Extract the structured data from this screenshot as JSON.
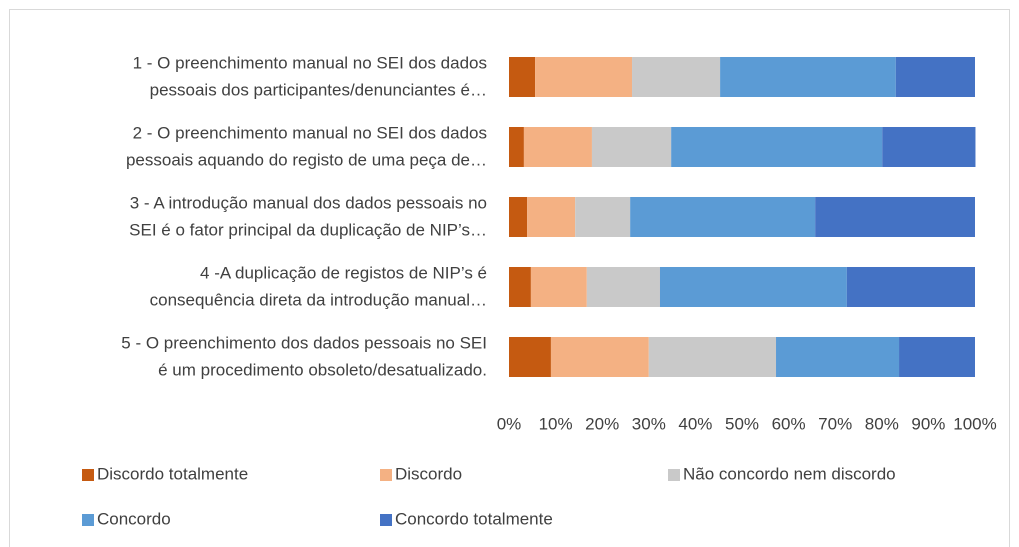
{
  "chart_data": {
    "type": "stacked-bar-horizontal",
    "categories": [
      [
        "1 - O preenchimento manual no SEI dos dados",
        "pessoais dos participantes/denunciantes é…"
      ],
      [
        "2 - O preenchimento manual no SEI dos dados",
        "pessoais aquando do registo de uma peça de…"
      ],
      [
        "3 - A introdução manual dos dados pessoais no",
        "SEI é o fator principal da duplicação de NIP’s…"
      ],
      [
        "4 -A duplicação de registos de NIP’s é",
        "consequência direta da introdução manual…"
      ],
      [
        "5 - O preenchimento dos dados pessoais no SEI",
        "é um procedimento obsoleto/desatualizado."
      ]
    ],
    "series": [
      {
        "name": "Discordo totalmente",
        "color": "#c55a11",
        "values": [
          5.6,
          3.2,
          3.9,
          4.7,
          9.0
        ]
      },
      {
        "name": "Discordo",
        "color": "#f4b183",
        "values": [
          20.8,
          14.6,
          10.3,
          12.0,
          21.0
        ]
      },
      {
        "name": "Não concordo nem discordo",
        "color": "#c9c9c9",
        "values": [
          18.9,
          17.0,
          11.8,
          15.7,
          27.3
        ]
      },
      {
        "name": "Concordo",
        "color": "#5b9bd5",
        "values": [
          37.7,
          45.3,
          39.7,
          40.1,
          26.4
        ]
      },
      {
        "name": "Concordo totalmente",
        "color": "#4472c4",
        "values": [
          17.0,
          20.0,
          34.3,
          27.5,
          16.3
        ]
      }
    ],
    "xlim": [
      0,
      100
    ],
    "xticks": [
      {
        "value": 0,
        "label": "0%"
      },
      {
        "value": 10,
        "label": "10%"
      },
      {
        "value": 20,
        "label": "20%"
      },
      {
        "value": 30,
        "label": "30%"
      },
      {
        "value": 40,
        "label": "40%"
      },
      {
        "value": 50,
        "label": "50%"
      },
      {
        "value": 60,
        "label": "60%"
      },
      {
        "value": 70,
        "label": "70%"
      },
      {
        "value": 80,
        "label": "80%"
      },
      {
        "value": 90,
        "label": "90%"
      },
      {
        "value": 100,
        "label": "100%"
      }
    ],
    "grid": false,
    "legend": "bottom"
  }
}
